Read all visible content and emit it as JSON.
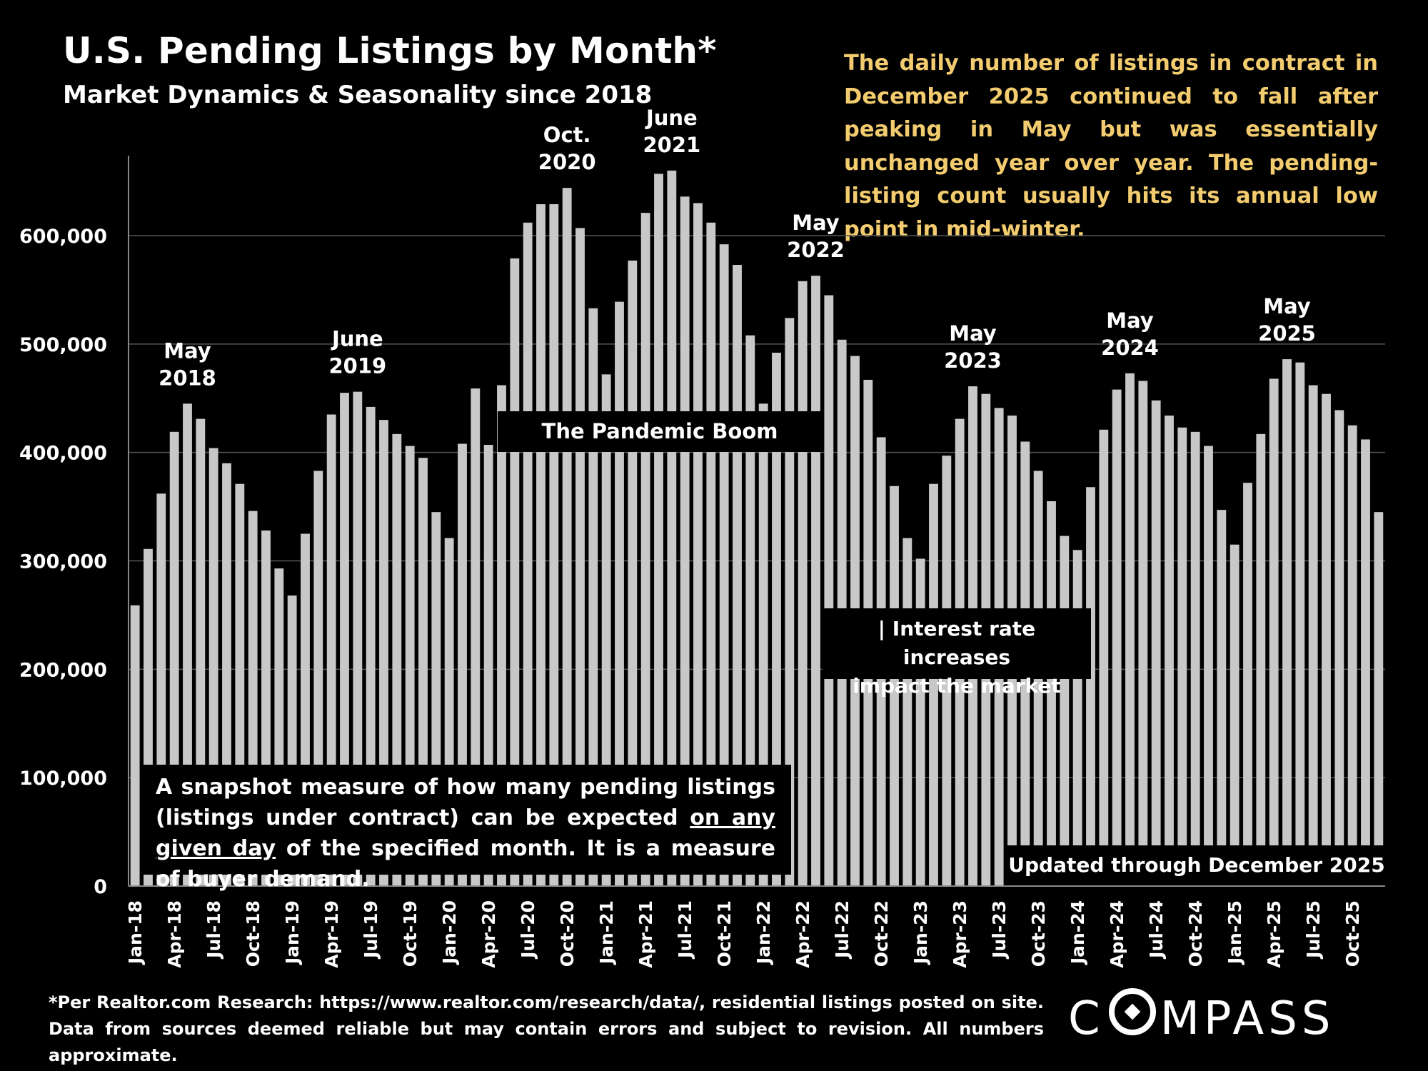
{
  "header": {
    "title": "U.S. Pending Listings by Month*",
    "subtitle": "Market Dynamics & Seasonality since 2018"
  },
  "commentary": "The daily number of listings in contract in December 2025 continued to fall after peaking in May but was essentially unchanged year over year. The pending-listing count usually hits its annual low point in mid-winter.",
  "boxes": {
    "pandemic": "The Pandemic Boom",
    "interest_line1": "| Interest rate increases",
    "interest_line2": "impact the market",
    "snapshot_pre": "A snapshot measure of how many pending listings (listings under contract) can be expected ",
    "snapshot_underlined": "on any given day",
    "snapshot_post": " of the specified month. It is a measure of buyer demand.",
    "updated": "Updated through December 2025"
  },
  "footnote": "*Per Realtor.com Research: https://www.realtor.com/research/data/, residential listings posted on site. Data from sources deemed reliable but may contain errors and subject to revision. All numbers approximate.",
  "logo": {
    "before": "C",
    "after": "MPASS"
  },
  "colors": {
    "bar": "#c8c8c8",
    "commentary": "#f3cc6f",
    "background": "#000000",
    "grid": "#555555"
  },
  "chart_data": {
    "type": "bar",
    "title": "U.S. Pending Listings by Month*",
    "subtitle": "Market Dynamics & Seasonality since 2018",
    "ylim": [
      0,
      700000
    ],
    "yticks": [
      0,
      100000,
      200000,
      300000,
      400000,
      500000,
      600000
    ],
    "ytick_labels": [
      "0",
      "100,000",
      "200,000",
      "300,000",
      "400,000",
      "500,000",
      "600,000"
    ],
    "xtick_labels": [
      {
        "index": 0,
        "label": "Jan-18"
      },
      {
        "index": 3,
        "label": "Apr-18"
      },
      {
        "index": 6,
        "label": "Jul-18"
      },
      {
        "index": 9,
        "label": "Oct-18"
      },
      {
        "index": 12,
        "label": "Jan-19"
      },
      {
        "index": 15,
        "label": "Apr-19"
      },
      {
        "index": 18,
        "label": "Jul-19"
      },
      {
        "index": 21,
        "label": "Oct-19"
      },
      {
        "index": 24,
        "label": "Jan-20"
      },
      {
        "index": 27,
        "label": "Apr-20"
      },
      {
        "index": 30,
        "label": "Jul-20"
      },
      {
        "index": 33,
        "label": "Oct-20"
      },
      {
        "index": 36,
        "label": "Jan-21"
      },
      {
        "index": 39,
        "label": "Apr-21"
      },
      {
        "index": 42,
        "label": "Jul-21"
      },
      {
        "index": 45,
        "label": "Oct-21"
      },
      {
        "index": 48,
        "label": "Jan-22"
      },
      {
        "index": 51,
        "label": "Apr-22"
      },
      {
        "index": 54,
        "label": "Jul-22"
      },
      {
        "index": 57,
        "label": "Oct-22"
      },
      {
        "index": 60,
        "label": "Jan-23"
      },
      {
        "index": 63,
        "label": "Apr-23"
      },
      {
        "index": 66,
        "label": "Jul-23"
      },
      {
        "index": 69,
        "label": "Oct-23"
      },
      {
        "index": 72,
        "label": "Jan-24"
      },
      {
        "index": 75,
        "label": "Apr-24"
      },
      {
        "index": 78,
        "label": "Jul-24"
      },
      {
        "index": 81,
        "label": "Oct-24"
      },
      {
        "index": 84,
        "label": "Jan-25"
      },
      {
        "index": 87,
        "label": "Apr-25"
      },
      {
        "index": 90,
        "label": "Jul-25"
      },
      {
        "index": 93,
        "label": "Oct-25"
      }
    ],
    "values": [
      259000,
      311000,
      362000,
      419000,
      445000,
      431000,
      404000,
      390000,
      371000,
      346000,
      328000,
      293000,
      268000,
      325000,
      383000,
      435000,
      455000,
      456000,
      442000,
      430000,
      417000,
      406000,
      395000,
      345000,
      321000,
      408000,
      459000,
      407000,
      462000,
      579000,
      612000,
      629000,
      629000,
      644000,
      607000,
      533000,
      472000,
      539000,
      577000,
      621000,
      657000,
      660000,
      636000,
      630000,
      612000,
      592000,
      573000,
      508000,
      445000,
      492000,
      524000,
      558000,
      563000,
      545000,
      504000,
      489000,
      467000,
      414000,
      369000,
      321000,
      302000,
      371000,
      397000,
      431000,
      461000,
      454000,
      441000,
      434000,
      410000,
      383000,
      355000,
      323000,
      310000,
      368000,
      421000,
      458000,
      473000,
      466000,
      448000,
      434000,
      423000,
      419000,
      406000,
      347000,
      315000,
      372000,
      417000,
      468000,
      486000,
      483000,
      462000,
      454000,
      439000,
      425000,
      412000,
      345000
    ],
    "peak_labels": [
      {
        "index": 4,
        "line1": "May",
        "line2": "2018"
      },
      {
        "index": 17,
        "line1": "June",
        "line2": "2019"
      },
      {
        "index": 33,
        "line1": "Oct.",
        "line2": "2020"
      },
      {
        "index": 41,
        "line1": "June",
        "line2": "2021"
      },
      {
        "index": 52,
        "line1": "May",
        "line2": "2022"
      },
      {
        "index": 64,
        "line1": "May",
        "line2": "2023"
      },
      {
        "index": 76,
        "line1": "May",
        "line2": "2024"
      },
      {
        "index": 88,
        "line1": "May",
        "line2": "2025"
      }
    ],
    "grid": true
  }
}
